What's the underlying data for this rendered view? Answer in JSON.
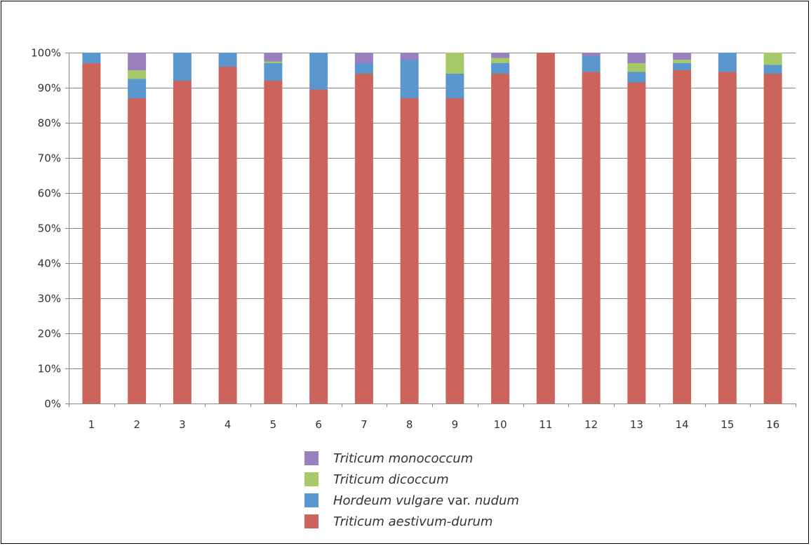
{
  "chart_data": {
    "type": "bar",
    "stacked": true,
    "title": "",
    "xlabel": "",
    "ylabel": "",
    "ylim": [
      0,
      100
    ],
    "y_ticks": [
      "0%",
      "10%",
      "20%",
      "30%",
      "40%",
      "50%",
      "60%",
      "70%",
      "80%",
      "90%",
      "100%"
    ],
    "grid": true,
    "legend_position": "bottom",
    "categories": [
      "1",
      "2",
      "3",
      "4",
      "5",
      "6",
      "7",
      "8",
      "9",
      "10",
      "11",
      "12",
      "13",
      "14",
      "15",
      "16"
    ],
    "series": [
      {
        "name": "Triticum aestivum-durum",
        "color": "#cd645c",
        "values": [
          97,
          87,
          92,
          96,
          92,
          89.5,
          94,
          87,
          87,
          94,
          100,
          94.5,
          91.5,
          95,
          94.5,
          94
        ]
      },
      {
        "name": "Hordeum vulgare var. nudum",
        "color": "#5b97cf",
        "values": [
          3,
          5.5,
          8,
          4,
          5,
          10.5,
          3,
          11,
          7,
          3,
          0,
          4.5,
          3,
          2,
          5.5,
          2.5
        ]
      },
      {
        "name": "Triticum dicoccum",
        "color": "#a5c868",
        "values": [
          0,
          2.5,
          0,
          0,
          0.5,
          0,
          0,
          0,
          6,
          1.5,
          0,
          0,
          2.5,
          1,
          0,
          3.5
        ]
      },
      {
        "name": "Triticum monococcum",
        "color": "#9a80be",
        "values": [
          0,
          5,
          0,
          0,
          2.5,
          0,
          3,
          2,
          0,
          1.5,
          0,
          1,
          3,
          2,
          0,
          0
        ]
      }
    ]
  },
  "legend": {
    "items": [
      {
        "color": "#9a80be",
        "parts": [
          {
            "text": "Triticum monococcum",
            "italic": true
          }
        ]
      },
      {
        "color": "#a5c868",
        "parts": [
          {
            "text": "Triticum dicoccum",
            "italic": true
          }
        ]
      },
      {
        "color": "#5b97cf",
        "parts": [
          {
            "text": "Hordeum vulgare",
            "italic": true
          },
          {
            "text": " var. ",
            "italic": false
          },
          {
            "text": "nudum",
            "italic": true
          }
        ]
      },
      {
        "color": "#cd645c",
        "parts": [
          {
            "text": "Triticum aestivum-durum",
            "italic": true
          }
        ]
      }
    ]
  }
}
